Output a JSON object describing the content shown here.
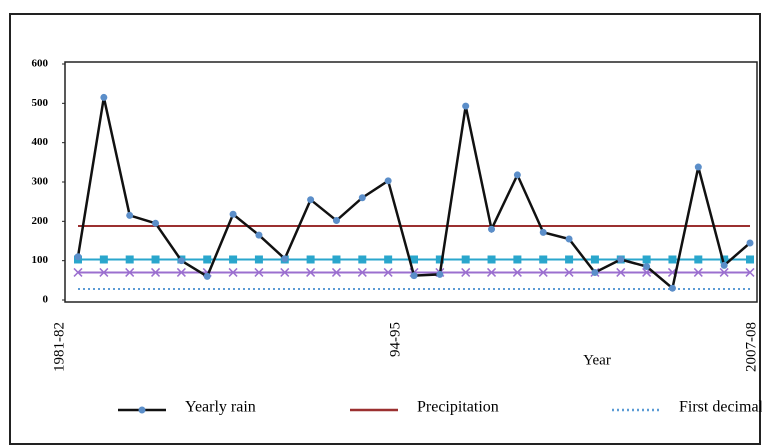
{
  "chart_data": {
    "type": "line",
    "x_label": "Year",
    "categories": [
      "1981-82",
      null,
      null,
      null,
      null,
      null,
      null,
      null,
      null,
      null,
      null,
      null,
      null,
      "94-95",
      null,
      null,
      null,
      null,
      null,
      null,
      null,
      null,
      null,
      null,
      null,
      null,
      "2007-08"
    ],
    "ylim": [
      0,
      600
    ],
    "yticks": [
      0,
      100,
      200,
      300,
      400,
      500,
      600
    ],
    "series": [
      {
        "name": "Yearly rain",
        "color": "#111111",
        "marker": "circle",
        "marker_color": "#5b8ec9",
        "values": [
          110,
          515,
          215,
          195,
          100,
          60,
          218,
          165,
          105,
          255,
          202,
          260,
          303,
          62,
          65,
          493,
          180,
          318,
          172,
          155,
          70,
          103,
          85,
          30,
          338,
          88,
          145
        ]
      },
      {
        "name": "Precipitation",
        "color": "#9b3030",
        "values": [
          188,
          188,
          188,
          188,
          188,
          188,
          188,
          188,
          188,
          188,
          188,
          188,
          188,
          188,
          188,
          188,
          188,
          188,
          188,
          188,
          188,
          188,
          188,
          188,
          188,
          188,
          188
        ]
      },
      {
        "name": "First decimal",
        "color": "#5b9bd5",
        "dash": "dotted",
        "values": [
          28,
          28,
          28,
          28,
          28,
          28,
          28,
          28,
          28,
          28,
          28,
          28,
          28,
          28,
          28,
          28,
          28,
          28,
          28,
          28,
          28,
          28,
          28,
          28,
          28,
          28,
          28
        ]
      },
      {
        "color": "#2aa6cc",
        "marker": "square",
        "values": [
          103,
          103,
          103,
          103,
          103,
          103,
          103,
          103,
          103,
          103,
          103,
          103,
          103,
          103,
          103,
          103,
          103,
          103,
          103,
          103,
          103,
          103,
          103,
          103,
          103,
          103,
          103
        ]
      },
      {
        "color": "#9b6fcf",
        "marker": "x",
        "values": [
          70,
          70,
          70,
          70,
          70,
          70,
          70,
          70,
          70,
          70,
          70,
          70,
          70,
          70,
          70,
          70,
          70,
          70,
          70,
          70,
          70,
          70,
          70,
          70,
          70,
          70,
          70
        ]
      }
    ]
  }
}
